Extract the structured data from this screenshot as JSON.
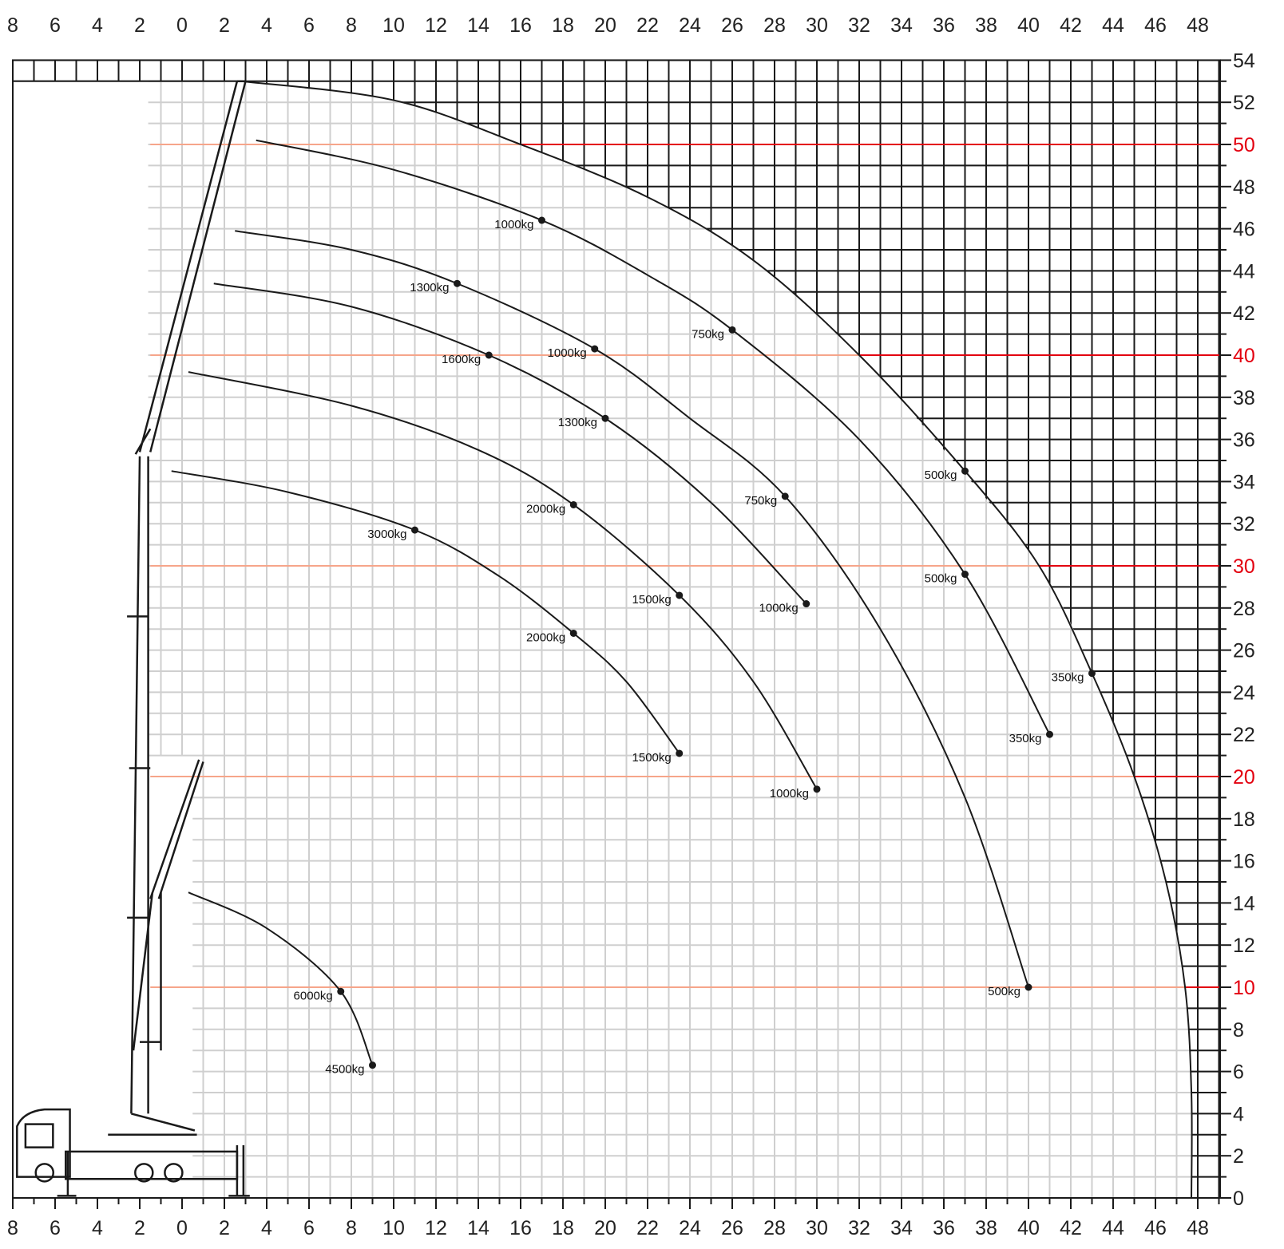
{
  "chart_data": {
    "type": "line",
    "title": "",
    "xlabel": "",
    "ylabel": "",
    "xlim": [
      -8,
      49
    ],
    "ylim": [
      0,
      54
    ],
    "grid": true,
    "x_tick_values": [
      -8,
      -6,
      -4,
      -2,
      0,
      2,
      4,
      6,
      8,
      10,
      12,
      14,
      16,
      18,
      20,
      22,
      24,
      26,
      28,
      30,
      32,
      34,
      36,
      38,
      40,
      42,
      44,
      46,
      48
    ],
    "x_tick_labels": [
      "8",
      "6",
      "4",
      "2",
      "0",
      "2",
      "4",
      "6",
      "8",
      "10",
      "12",
      "14",
      "16",
      "18",
      "20",
      "22",
      "24",
      "26",
      "28",
      "30",
      "32",
      "34",
      "36",
      "38",
      "40",
      "42",
      "44",
      "46",
      "48"
    ],
    "y_tick_values": [
      0,
      2,
      4,
      6,
      8,
      10,
      12,
      14,
      16,
      18,
      20,
      22,
      24,
      26,
      28,
      30,
      32,
      34,
      36,
      38,
      40,
      42,
      44,
      46,
      48,
      50,
      52,
      54
    ],
    "y_tick_labels": [
      "0",
      "2",
      "4",
      "6",
      "8",
      "10",
      "12",
      "14",
      "16",
      "18",
      "20",
      "22",
      "24",
      "26",
      "28",
      "30",
      "32",
      "34",
      "36",
      "38",
      "40",
      "42",
      "44",
      "46",
      "48",
      "50",
      "52",
      "54"
    ],
    "highlighted_heights": [
      10,
      20,
      30,
      40,
      50
    ],
    "colors": {
      "highlight_inside": "#f6a58a",
      "highlight_outside": "#e3000f",
      "highlight_label": "#e3000f",
      "grid_light": "#cfcfcf",
      "grid_dark": "#1a1a1a",
      "curve": "#1a1a1a"
    },
    "envelope": [
      [
        2.8,
        53
      ],
      [
        10,
        52.1
      ],
      [
        16,
        50
      ],
      [
        22,
        47.5
      ],
      [
        27,
        44.5
      ],
      [
        32,
        40
      ],
      [
        36,
        35.5
      ],
      [
        40.5,
        30
      ],
      [
        43,
        25
      ],
      [
        45,
        20
      ],
      [
        46.5,
        15
      ],
      [
        47.4,
        10
      ],
      [
        47.7,
        5
      ],
      [
        47.7,
        0
      ]
    ],
    "series": [
      {
        "path": [
          [
            2.8,
            53
          ],
          [
            10,
            52.1
          ],
          [
            16,
            50
          ],
          [
            22,
            47.5
          ],
          [
            27,
            44.5
          ],
          [
            32,
            40
          ],
          [
            37,
            34.5
          ],
          [
            40.5,
            30
          ],
          [
            43,
            24.9
          ],
          [
            45,
            20
          ],
          [
            46.5,
            15
          ],
          [
            47.4,
            10
          ],
          [
            47.7,
            5
          ],
          [
            47.7,
            0
          ]
        ],
        "points": [
          {
            "x": 37,
            "y": 34.5,
            "label": "500kg"
          },
          {
            "x": 43,
            "y": 24.9,
            "label": "350kg"
          }
        ]
      },
      {
        "path": [
          [
            3.5,
            50.2
          ],
          [
            10,
            48.8
          ],
          [
            17,
            46.4
          ],
          [
            22,
            43.8
          ],
          [
            26,
            41.2
          ],
          [
            32,
            36
          ],
          [
            37,
            29.6
          ],
          [
            41,
            22
          ]
        ],
        "points": [
          {
            "x": 17,
            "y": 46.4,
            "label": "1000kg"
          },
          {
            "x": 26,
            "y": 41.2,
            "label": "750kg"
          },
          {
            "x": 37,
            "y": 29.6,
            "label": "500kg"
          },
          {
            "x": 41,
            "y": 22,
            "label": "350kg"
          }
        ]
      },
      {
        "path": [
          [
            2.5,
            45.9
          ],
          [
            8,
            45
          ],
          [
            13,
            43.4
          ],
          [
            19.5,
            40.3
          ],
          [
            24,
            37
          ],
          [
            28.5,
            33.3
          ],
          [
            33,
            27
          ],
          [
            37,
            19
          ],
          [
            40,
            10
          ]
        ],
        "points": [
          {
            "x": 13,
            "y": 43.4,
            "label": "1300kg"
          },
          {
            "x": 19.5,
            "y": 40.3,
            "label": "1000kg"
          },
          {
            "x": 28.5,
            "y": 33.3,
            "label": "750kg"
          },
          {
            "x": 40,
            "y": 10,
            "label": "500kg"
          }
        ]
      },
      {
        "path": [
          [
            1.5,
            43.4
          ],
          [
            8,
            42.3
          ],
          [
            14.5,
            40
          ],
          [
            20,
            37
          ],
          [
            25,
            33
          ],
          [
            29.5,
            28.2
          ]
        ],
        "points": [
          {
            "x": 14.5,
            "y": 40,
            "label": "1600kg"
          },
          {
            "x": 20,
            "y": 37,
            "label": "1300kg"
          },
          {
            "x": 29.5,
            "y": 28.2,
            "label": "1000kg"
          }
        ]
      },
      {
        "path": [
          [
            0.3,
            39.2
          ],
          [
            8,
            37.6
          ],
          [
            14,
            35.5
          ],
          [
            18.5,
            32.9
          ],
          [
            23.5,
            28.6
          ],
          [
            27,
            24.5
          ],
          [
            30,
            19.4
          ]
        ],
        "points": [
          {
            "x": 18.5,
            "y": 32.9,
            "label": "2000kg"
          },
          {
            "x": 23.5,
            "y": 28.6,
            "label": "1500kg"
          },
          {
            "x": 30,
            "y": 19.4,
            "label": "1000kg"
          }
        ]
      },
      {
        "path": [
          [
            -0.5,
            34.5
          ],
          [
            5,
            33.5
          ],
          [
            11,
            31.7
          ],
          [
            15,
            29.5
          ],
          [
            18.5,
            26.8
          ],
          [
            21,
            24.5
          ],
          [
            23.5,
            21.1
          ]
        ],
        "points": [
          {
            "x": 11,
            "y": 31.7,
            "label": "3000kg"
          },
          {
            "x": 18.5,
            "y": 26.8,
            "label": "2000kg"
          },
          {
            "x": 23.5,
            "y": 21.1,
            "label": "1500kg"
          }
        ]
      },
      {
        "path": [
          [
            0.3,
            14.5
          ],
          [
            4,
            12.8
          ],
          [
            7.5,
            9.8
          ],
          [
            9,
            6.3
          ]
        ],
        "points": [
          {
            "x": 7.5,
            "y": 9.8,
            "label": "6000kg"
          },
          {
            "x": 9,
            "y": 6.3,
            "label": "4500kg"
          }
        ]
      }
    ]
  }
}
